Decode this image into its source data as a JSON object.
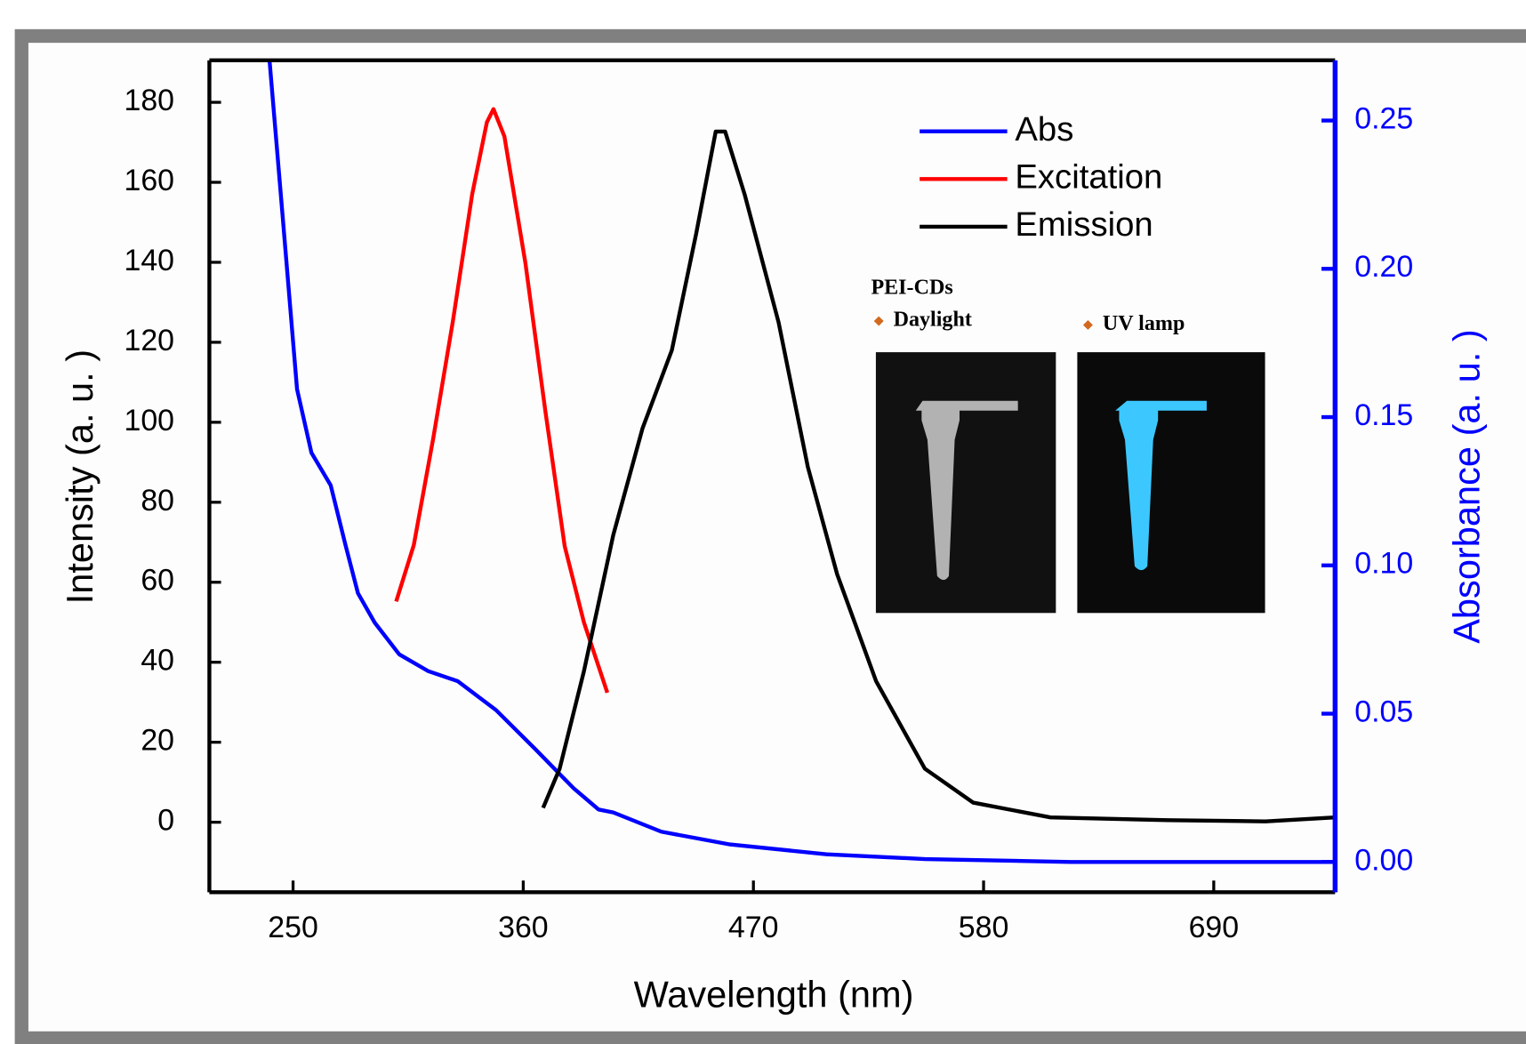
{
  "chart_data": {
    "type": "line",
    "xlabel": "Wavelength (nm)",
    "ylabel": "Intensity (a. u. )",
    "y2label": "Absorbance (a. u. )",
    "xlim": [
      210,
      748
    ],
    "xticks": [
      250,
      360,
      470,
      580,
      690
    ],
    "ylim": [
      -17.5,
      190.5
    ],
    "yticks": [
      0,
      20,
      40,
      60,
      80,
      100,
      120,
      140,
      160,
      180
    ],
    "y2lim": [
      -0.0102,
      0.2703
    ],
    "y2ticks": [
      {
        "value": 0,
        "label": "0.00"
      },
      {
        "value": 0.05,
        "label": "0.05"
      },
      {
        "value": 0.1,
        "label": "0.10"
      },
      {
        "value": 0.15,
        "label": "0.15"
      },
      {
        "value": 0.2,
        "label": "0.20"
      },
      {
        "value": 0.25,
        "label": "0.25"
      }
    ],
    "legend": "upper right",
    "series": [
      {
        "name": "Abs",
        "color": "#0000ff",
        "axis": "y2",
        "x": [
          238.8,
          244.9,
          251.9,
          258.8,
          268,
          275,
          281,
          289,
          300.7,
          314.7,
          328.6,
          347,
          365.8,
          384,
          396,
          403,
          426,
          458.8,
          505,
          552,
          621.6,
          748
        ],
        "values": [
          0.27,
          0.2185,
          0.1594,
          0.138,
          0.127,
          0.107,
          0.0906,
          0.0807,
          0.07,
          0.0643,
          0.061,
          0.0512,
          0.038,
          0.0249,
          0.0177,
          0.0167,
          0.0102,
          0.0059,
          0.0026,
          0.001,
          0,
          0
        ]
      },
      {
        "name": "Excitation",
        "color": "#ff0000",
        "x": [
          299.3,
          307.7,
          317,
          326.3,
          335.6,
          342.6,
          345.8,
          351,
          361,
          370.5,
          379.8,
          389,
          400.2
        ],
        "values": [
          55.2,
          69.3,
          96,
          125,
          157,
          175,
          178.3,
          171.5,
          140,
          103,
          69,
          50,
          32.4
        ]
      },
      {
        "name": "Emission",
        "color": "#000000",
        "x": [
          369.5,
          377.4,
          389,
          403,
          417,
          431,
          442.6,
          452,
          456.5,
          465.8,
          482,
          496,
          510,
          528.6,
          551.9,
          575,
          612,
          668,
          714.7,
          748
        ],
        "values": [
          3.6,
          13.4,
          37.7,
          71.8,
          98.5,
          118,
          147,
          172.7,
          172.7,
          157,
          125,
          88.8,
          62,
          35.3,
          13.4,
          4.9,
          1.2,
          0.5,
          0.2,
          1.2
        ]
      }
    ],
    "inset": {
      "title": "PEI-CDs",
      "labels": [
        "Daylight",
        "UV lamp"
      ]
    }
  }
}
